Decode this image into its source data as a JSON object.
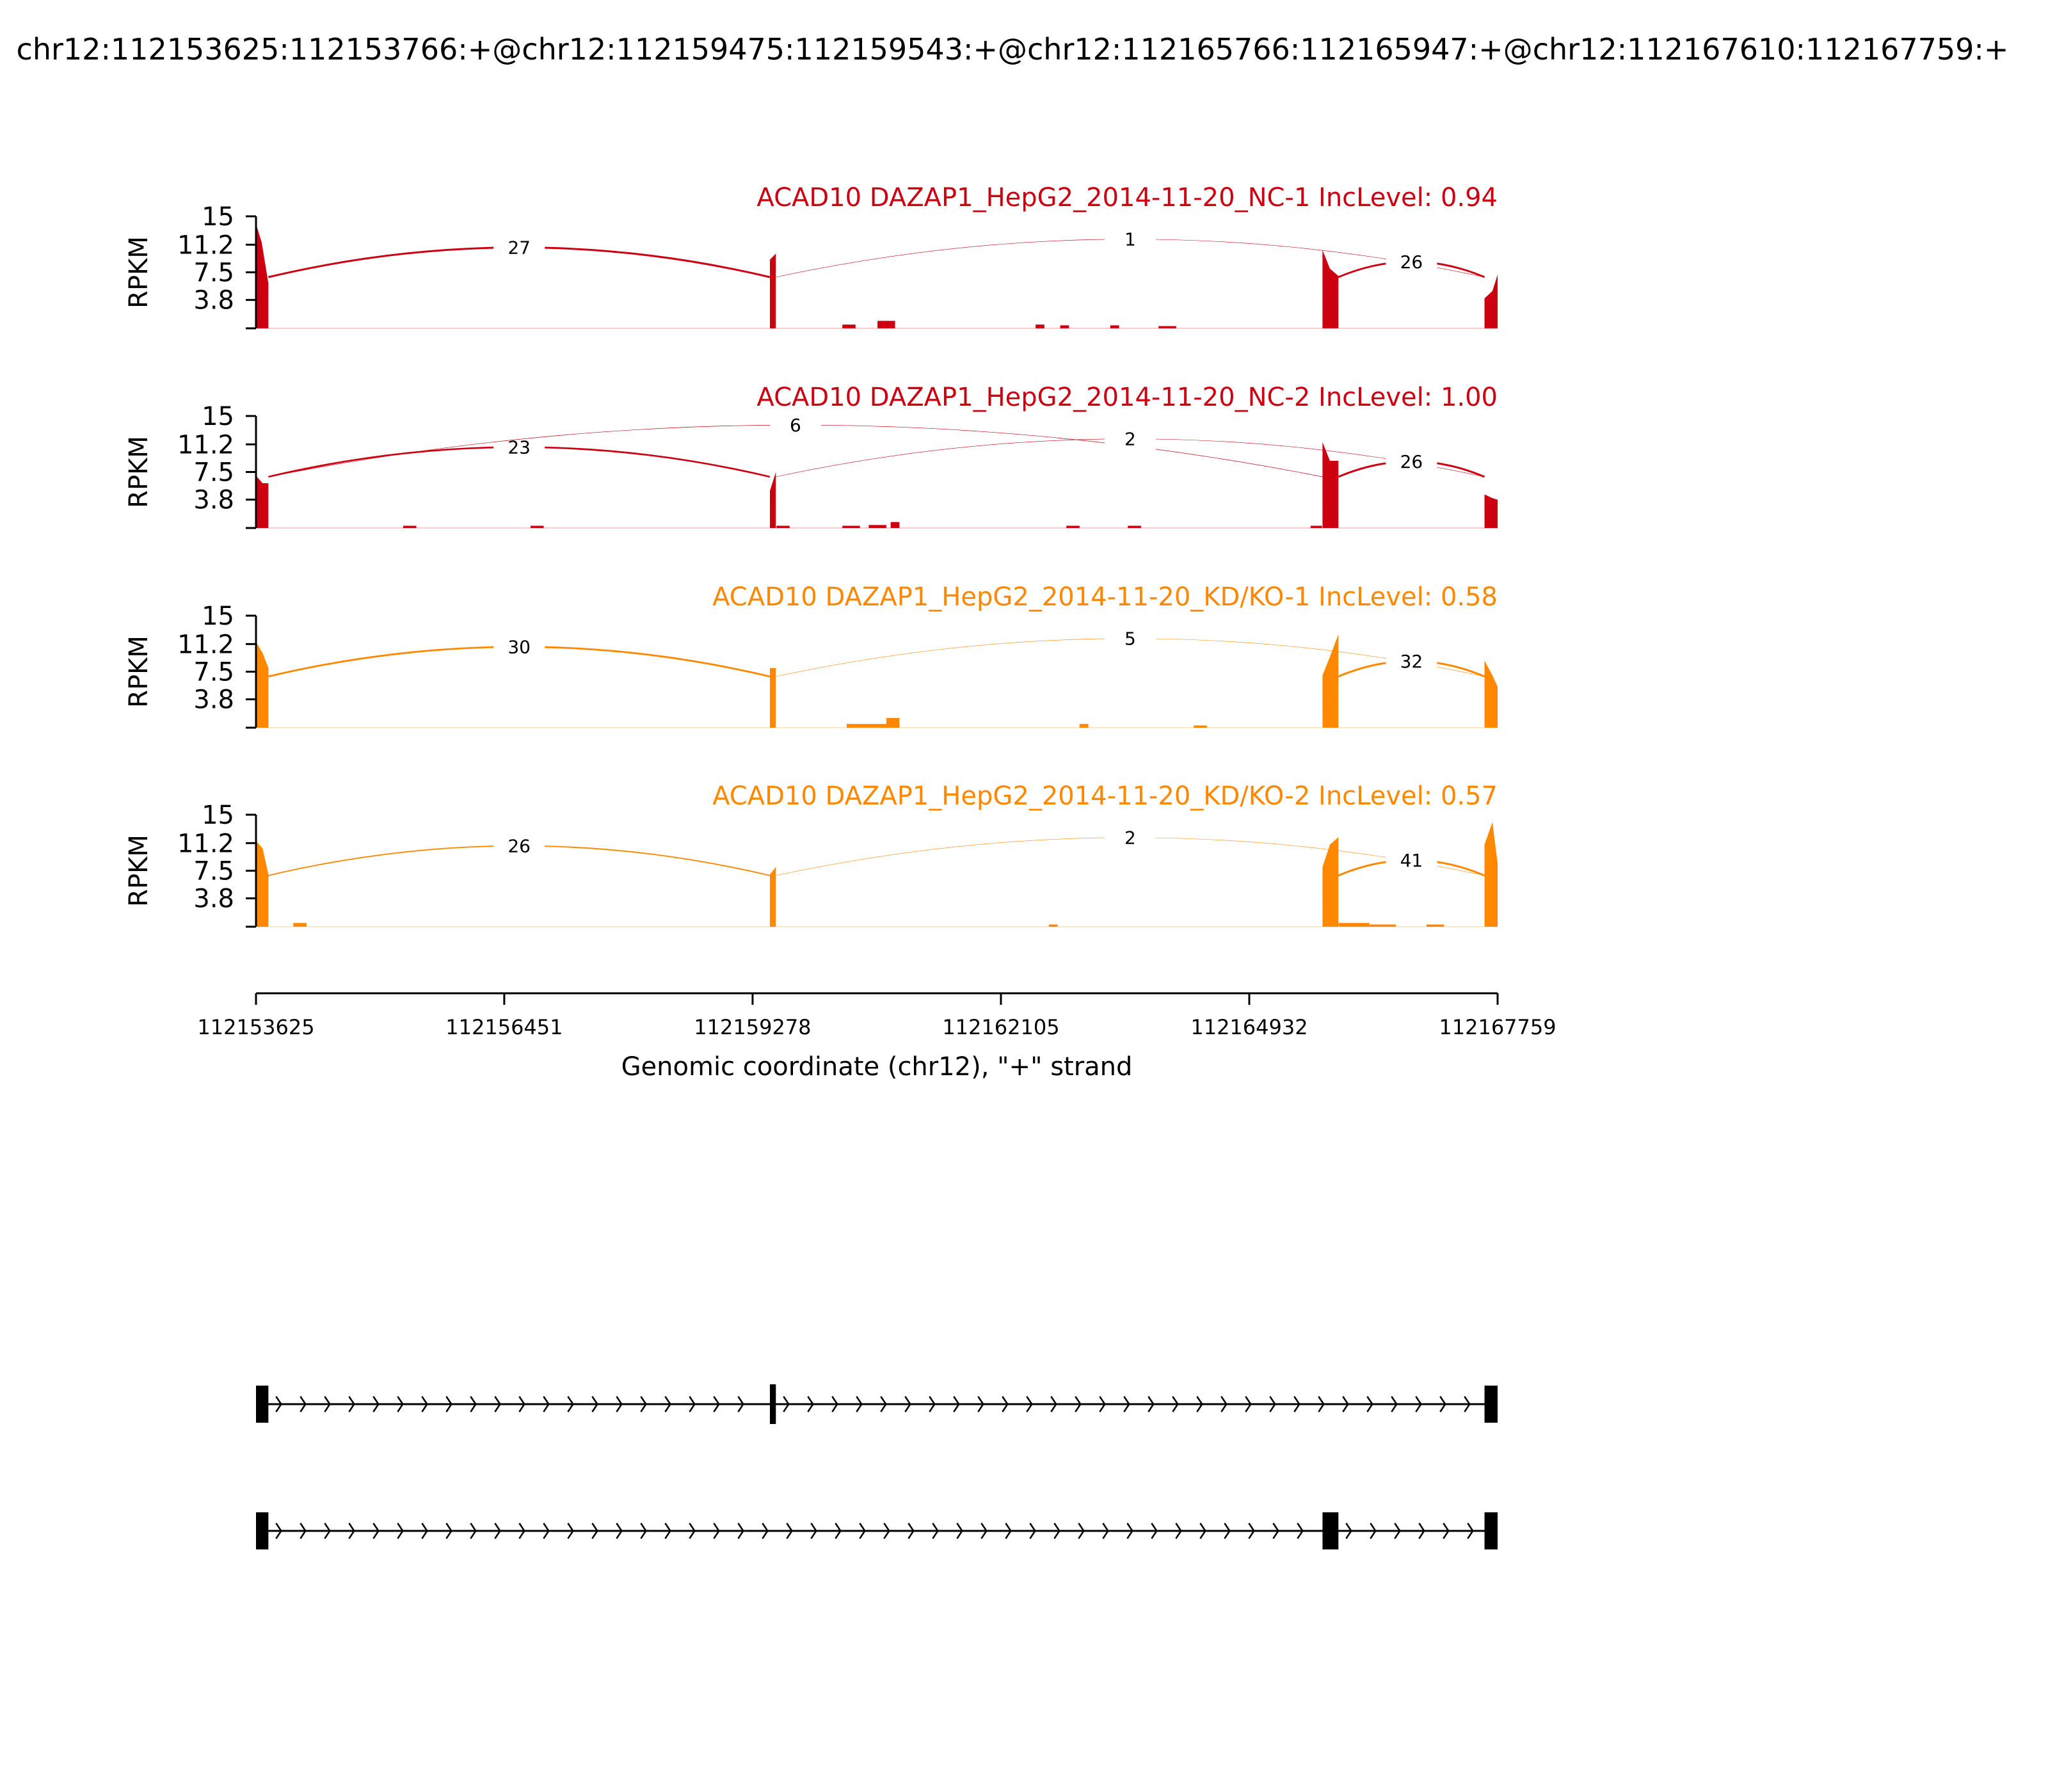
{
  "title": "chr12:112153625:112153766:+@chr12:112159475:112159543:+@chr12:112165766:112165947:+@chr12:112167610:112167759:+",
  "chart_data": {
    "type": "area",
    "xlabel": "Genomic coordinate (chr12), \"+\" strand",
    "xlim": [
      112153625,
      112167759
    ],
    "xticks": [
      112153625,
      112156451,
      112159278,
      112162105,
      112164932,
      112167759
    ],
    "ylabel": "RPKM",
    "ylim": [
      0,
      15
    ],
    "yticks": [
      3.8,
      7.5,
      11.2,
      15
    ],
    "grid": false,
    "exons": [
      {
        "start": 112153625,
        "end": 112153766
      },
      {
        "start": 112159475,
        "end": 112159543
      },
      {
        "start": 112165766,
        "end": 112165947
      },
      {
        "start": 112167610,
        "end": 112167759
      }
    ],
    "panels": [
      {
        "label": "ACAD10 DAZAP1_HepG2_2014-11-20_NC-1 IncLevel: 0.94",
        "color": "#cc0011",
        "coverage": [
          {
            "x": 112153625,
            "y": 14.0
          },
          {
            "x": 112153690,
            "y": 11.5
          },
          {
            "x": 112153766,
            "y": 6.0
          },
          {
            "x": 112159475,
            "y": 9.2
          },
          {
            "x": 112159543,
            "y": 10.0
          },
          {
            "x": 112165766,
            "y": 10.5
          },
          {
            "x": 112165850,
            "y": 8.0
          },
          {
            "x": 112165947,
            "y": 7.0
          },
          {
            "x": 112167610,
            "y": 4.0
          },
          {
            "x": 112167700,
            "y": 5.0
          },
          {
            "x": 112167759,
            "y": 7.2
          }
        ],
        "bumps": [
          {
            "start": 112160300,
            "end": 112160450,
            "y": 0.5
          },
          {
            "start": 112160700,
            "end": 112160900,
            "y": 1.0
          },
          {
            "start": 112162500,
            "end": 112162600,
            "y": 0.5
          },
          {
            "start": 112162780,
            "end": 112162880,
            "y": 0.4
          },
          {
            "start": 112163350,
            "end": 112163450,
            "y": 0.4
          },
          {
            "start": 112163900,
            "end": 112164100,
            "y": 0.3
          }
        ],
        "junctions": [
          {
            "from": 112153766,
            "to": 112159475,
            "count": 27,
            "side": "above"
          },
          {
            "from": 112159543,
            "to": 112167610,
            "count": 1,
            "side": "above"
          },
          {
            "from": 112165947,
            "to": 112167610,
            "count": 26,
            "side": "above"
          }
        ]
      },
      {
        "label": "ACAD10 DAZAP1_HepG2_2014-11-20_NC-2 IncLevel: 1.00",
        "color": "#cc0011",
        "coverage": [
          {
            "x": 112153625,
            "y": 7.0
          },
          {
            "x": 112153700,
            "y": 6.0
          },
          {
            "x": 112153766,
            "y": 6.0
          },
          {
            "x": 112159475,
            "y": 5.0
          },
          {
            "x": 112159543,
            "y": 7.5
          },
          {
            "x": 112165766,
            "y": 11.5
          },
          {
            "x": 112165850,
            "y": 9.0
          },
          {
            "x": 112165947,
            "y": 9.0
          },
          {
            "x": 112167610,
            "y": 4.5
          },
          {
            "x": 112167700,
            "y": 4.0
          },
          {
            "x": 112167759,
            "y": 3.8
          }
        ],
        "bumps": [
          {
            "start": 112155300,
            "end": 112155450,
            "y": 0.3
          },
          {
            "start": 112156750,
            "end": 112156900,
            "y": 0.3
          },
          {
            "start": 112159550,
            "end": 112159700,
            "y": 0.3
          },
          {
            "start": 112160300,
            "end": 112160500,
            "y": 0.3
          },
          {
            "start": 112160600,
            "end": 112160800,
            "y": 0.4
          },
          {
            "start": 112160850,
            "end": 112160950,
            "y": 0.8
          },
          {
            "start": 112162850,
            "end": 112163000,
            "y": 0.3
          },
          {
            "start": 112163550,
            "end": 112163700,
            "y": 0.3
          },
          {
            "start": 112165630,
            "end": 112165760,
            "y": 0.3
          }
        ],
        "junctions": [
          {
            "from": 112153766,
            "to": 112159475,
            "count": 23,
            "side": "above"
          },
          {
            "from": 112153766,
            "to": 112165766,
            "count": 6,
            "side": "above"
          },
          {
            "from": 112159543,
            "to": 112167610,
            "count": 2,
            "side": "above"
          },
          {
            "from": 112165947,
            "to": 112167610,
            "count": 26,
            "side": "above"
          }
        ]
      },
      {
        "label": "ACAD10 DAZAP1_HepG2_2014-11-20_KD/KO-1 IncLevel: 0.58",
        "color": "#ff8800",
        "coverage": [
          {
            "x": 112153625,
            "y": 11.5
          },
          {
            "x": 112153700,
            "y": 10.0
          },
          {
            "x": 112153766,
            "y": 8.0
          },
          {
            "x": 112159475,
            "y": 8.0
          },
          {
            "x": 112159543,
            "y": 8.0
          },
          {
            "x": 112165766,
            "y": 7.0
          },
          {
            "x": 112165850,
            "y": 9.5
          },
          {
            "x": 112165947,
            "y": 12.5
          },
          {
            "x": 112167610,
            "y": 9.0
          },
          {
            "x": 112167700,
            "y": 7.0
          },
          {
            "x": 112167759,
            "y": 5.5
          }
        ],
        "bumps": [
          {
            "start": 112160350,
            "end": 112160800,
            "y": 0.5
          },
          {
            "start": 112160800,
            "end": 112160950,
            "y": 1.3
          },
          {
            "start": 112163000,
            "end": 112163100,
            "y": 0.5
          },
          {
            "start": 112164300,
            "end": 112164450,
            "y": 0.3
          }
        ],
        "junctions": [
          {
            "from": 112153766,
            "to": 112159475,
            "count": 30,
            "side": "above"
          },
          {
            "from": 112159543,
            "to": 112167610,
            "count": 5,
            "side": "above"
          },
          {
            "from": 112165947,
            "to": 112167610,
            "count": 32,
            "side": "above"
          }
        ]
      },
      {
        "label": "ACAD10 DAZAP1_HepG2_2014-11-20_KD/KO-2 IncLevel: 0.57",
        "color": "#ff8800",
        "coverage": [
          {
            "x": 112153625,
            "y": 11.5
          },
          {
            "x": 112153700,
            "y": 10.5
          },
          {
            "x": 112153766,
            "y": 7.0
          },
          {
            "x": 112159475,
            "y": 7.0
          },
          {
            "x": 112159543,
            "y": 8.0
          },
          {
            "x": 112165766,
            "y": 8.0
          },
          {
            "x": 112165850,
            "y": 11.0
          },
          {
            "x": 112165947,
            "y": 12.0
          },
          {
            "x": 112167610,
            "y": 11.0
          },
          {
            "x": 112167700,
            "y": 14.0
          },
          {
            "x": 112167759,
            "y": 8.5
          }
        ],
        "bumps": [
          {
            "start": 112154050,
            "end": 112154200,
            "y": 0.5
          },
          {
            "start": 112162650,
            "end": 112162750,
            "y": 0.3
          },
          {
            "start": 112165950,
            "end": 112166300,
            "y": 0.5
          },
          {
            "start": 112166300,
            "end": 112166600,
            "y": 0.3
          },
          {
            "start": 112166950,
            "end": 112167150,
            "y": 0.3
          }
        ],
        "junctions": [
          {
            "from": 112153766,
            "to": 112159475,
            "count": 26,
            "side": "above"
          },
          {
            "from": 112159543,
            "to": 112167610,
            "count": 2,
            "side": "above"
          },
          {
            "from": 112165947,
            "to": 112167610,
            "count": 41,
            "side": "above"
          }
        ]
      }
    ],
    "isoforms": [
      {
        "exons": [
          0,
          1,
          3
        ]
      },
      {
        "exons": [
          0,
          2,
          3
        ]
      }
    ]
  }
}
